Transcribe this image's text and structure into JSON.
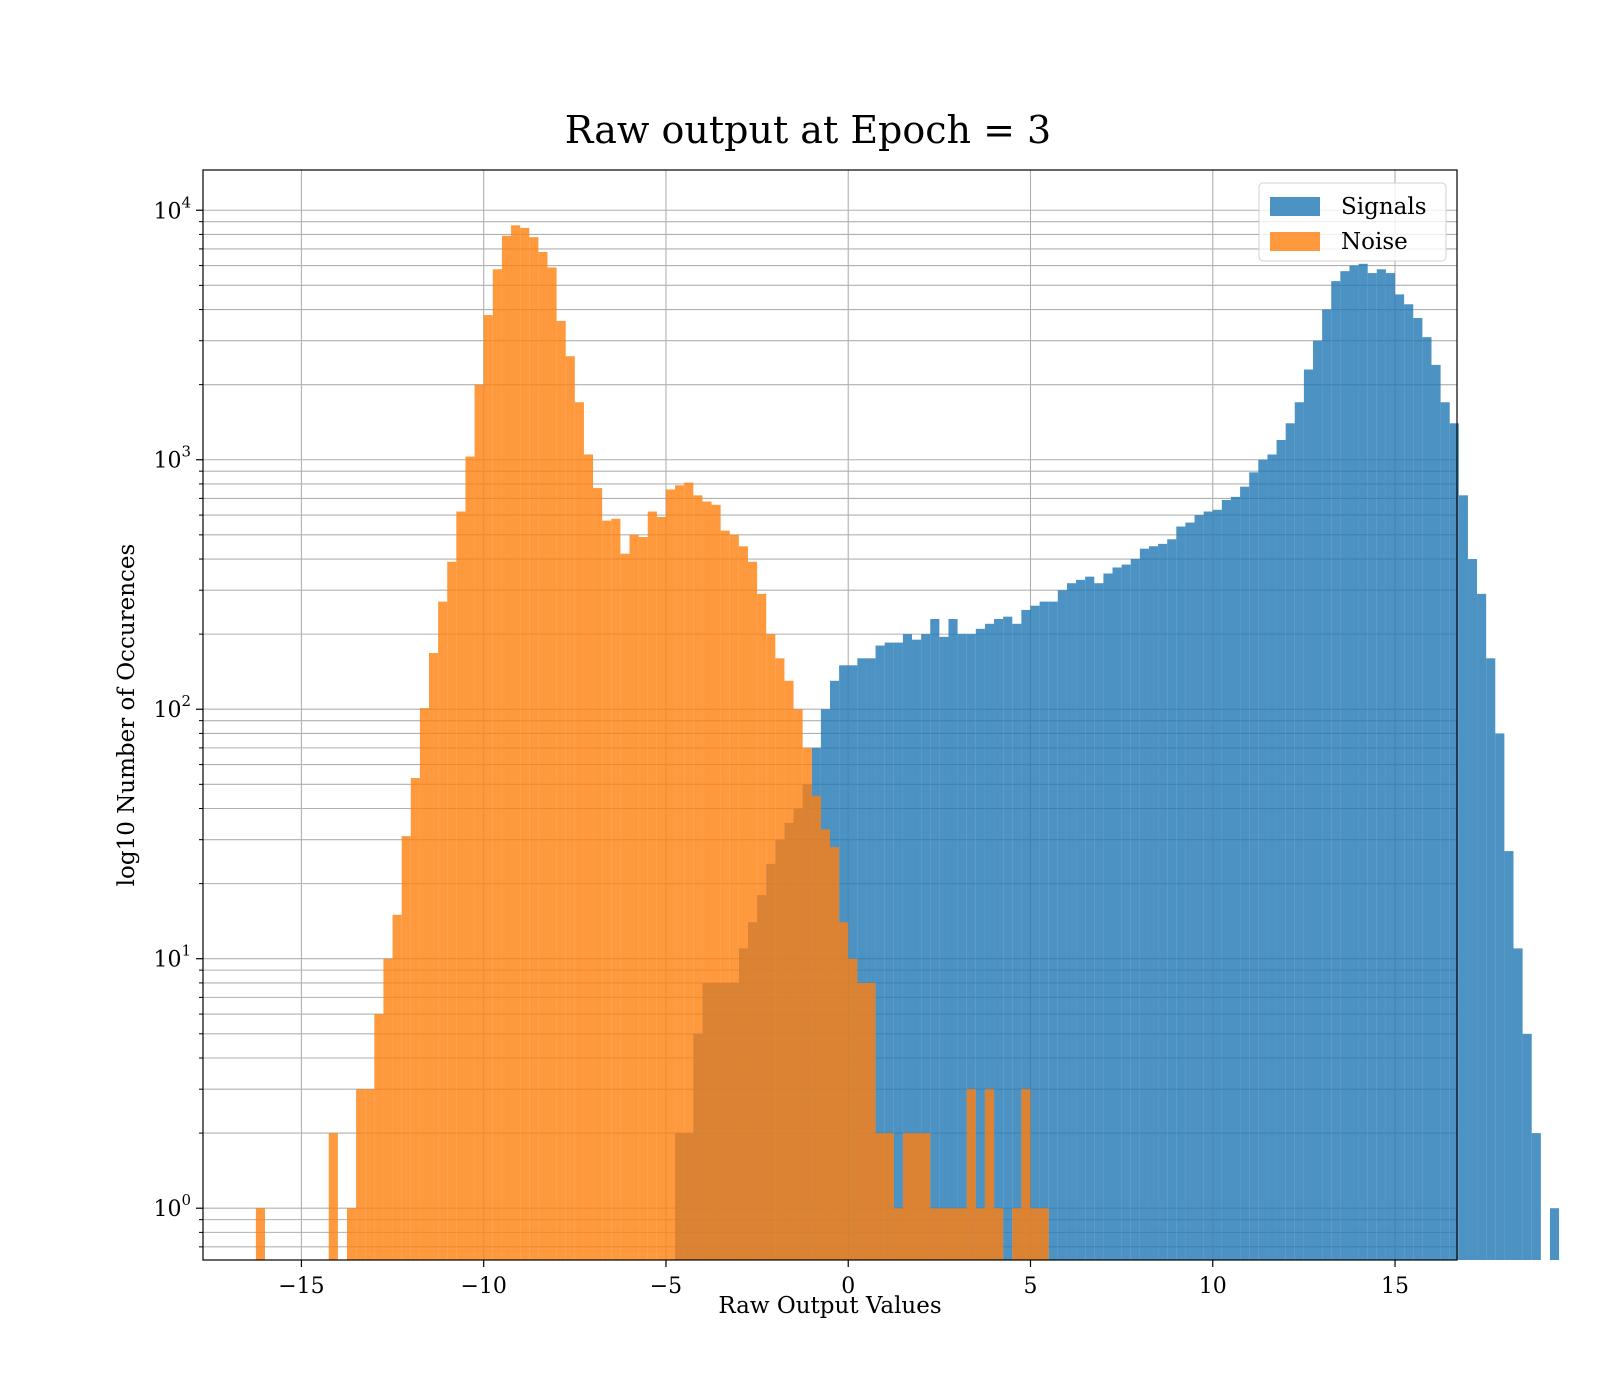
{
  "chart_data": {
    "type": "bar",
    "title": "Raw output at Epoch = 3",
    "xlabel": "Raw Output Values",
    "ylabel": "log10 Number of Occurences",
    "x_scale": "linear",
    "y_scale": "log",
    "xlim": [
      -17.7,
      16.7
    ],
    "ylim": [
      0.62,
      14500
    ],
    "xticks": [
      -15,
      -10,
      -5,
      0,
      5,
      10,
      15
    ],
    "yticks": [
      1,
      10,
      100,
      1000,
      10000
    ],
    "grid": true,
    "legend_position": "upper right",
    "series": [
      {
        "name": "Signals",
        "color": "#1f77b4",
        "alpha": 0.8,
        "bin_start": -4.75,
        "bin_width": 0.25,
        "counts": [
          2,
          2,
          5,
          8,
          8,
          8,
          8,
          11,
          14,
          18,
          24,
          30,
          35,
          40,
          50,
          70,
          100,
          130,
          150,
          150,
          160,
          160,
          180,
          185,
          185,
          200,
          190,
          200,
          230,
          195,
          230,
          200,
          200,
          210,
          220,
          230,
          235,
          220,
          250,
          260,
          270,
          270,
          300,
          320,
          330,
          340,
          320,
          350,
          370,
          380,
          400,
          440,
          450,
          460,
          480,
          540,
          560,
          600,
          620,
          630,
          690,
          710,
          780,
          890,
          1000,
          1050,
          1200,
          1400,
          1700,
          2300,
          3000,
          4000,
          5200,
          5700,
          6000,
          6100,
          5600,
          5800,
          5600,
          4600,
          4200,
          3700,
          3100,
          2400,
          1700,
          1400,
          720,
          400,
          290,
          160,
          80,
          27,
          11,
          5,
          2,
          0,
          1
        ]
      },
      {
        "name": "Noise",
        "color": "#ff7f0e",
        "alpha": 0.8,
        "bin_start": -16.25,
        "bin_width": 0.25,
        "counts": [
          1,
          0,
          0,
          0,
          0,
          0,
          0,
          0,
          2,
          0,
          1,
          3,
          3,
          6,
          10,
          15,
          31,
          53,
          101,
          168,
          270,
          390,
          620,
          1030,
          2000,
          3800,
          5800,
          7900,
          8700,
          8500,
          7800,
          6800,
          5900,
          3600,
          2600,
          1700,
          1050,
          770,
          570,
          580,
          420,
          500,
          490,
          620,
          590,
          760,
          790,
          810,
          720,
          680,
          660,
          520,
          500,
          450,
          390,
          290,
          200,
          160,
          130,
          100,
          70,
          45,
          33,
          28,
          14,
          10,
          8,
          8,
          2,
          2,
          1,
          2,
          2,
          2,
          1,
          1,
          1,
          1,
          3,
          1,
          3,
          1,
          0,
          1,
          3,
          1,
          1
        ]
      }
    ]
  }
}
